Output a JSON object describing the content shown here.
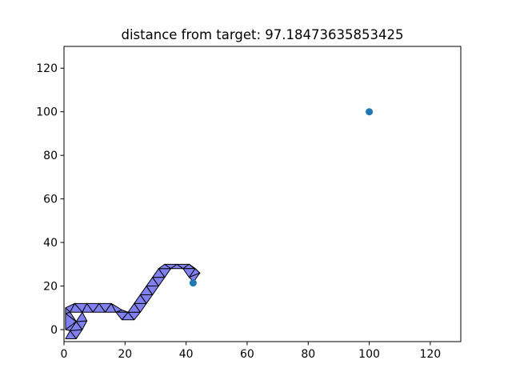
{
  "chart_data": {
    "type": "scatter",
    "title": "distance from target: 97.18473635853425",
    "xlabel": "",
    "ylabel": "",
    "xlim": [
      0,
      130
    ],
    "ylim": [
      -5.5,
      130
    ],
    "xticks": [
      0,
      20,
      40,
      60,
      80,
      100,
      120
    ],
    "yticks": [
      0,
      20,
      40,
      60,
      80,
      100,
      120
    ],
    "grid": false,
    "points": [
      {
        "x": 100,
        "y": 100
      },
      {
        "x": 42.3,
        "y": 21.4
      }
    ],
    "colors": {
      "marker": "#1f77b4",
      "triangle_fill": "#8080f0",
      "triangle_edge": "#000000"
    },
    "triangles": [
      [
        [
          0.5,
          -4.2
        ],
        [
          4.0,
          -4.2
        ],
        [
          2.0,
          -0.5
        ]
      ],
      [
        [
          2.0,
          -0.5
        ],
        [
          4.0,
          -4.2
        ],
        [
          6.0,
          0.0
        ]
      ],
      [
        [
          0.5,
          0.0
        ],
        [
          2.0,
          -0.5
        ],
        [
          4.0,
          3.7
        ]
      ],
      [
        [
          2.0,
          -0.5
        ],
        [
          6.0,
          0.0
        ],
        [
          4.0,
          3.7
        ]
      ],
      [
        [
          4.0,
          3.7
        ],
        [
          6.0,
          0.0
        ],
        [
          7.5,
          4.0
        ]
      ],
      [
        [
          0.5,
          0.0
        ],
        [
          4.0,
          3.7
        ],
        [
          0.5,
          7.4
        ]
      ],
      [
        [
          0.5,
          7.4
        ],
        [
          4.0,
          3.7
        ],
        [
          2.0,
          8.0
        ]
      ],
      [
        [
          4.0,
          3.7
        ],
        [
          7.5,
          4.0
        ],
        [
          6.0,
          8.0
        ]
      ],
      [
        [
          0.5,
          7.4
        ],
        [
          2.0,
          8.0
        ],
        [
          0.5,
          10.0
        ]
      ],
      [
        [
          0.5,
          10.0
        ],
        [
          2.0,
          8.0
        ],
        [
          3.5,
          12.0
        ]
      ],
      [
        [
          2.0,
          8.0
        ],
        [
          6.0,
          8.0
        ],
        [
          3.5,
          12.0
        ]
      ],
      [
        [
          3.5,
          12.0
        ],
        [
          6.0,
          8.0
        ],
        [
          7.5,
          12.0
        ]
      ],
      [
        [
          6.0,
          8.0
        ],
        [
          9.5,
          8.0
        ],
        [
          7.5,
          12.0
        ]
      ],
      [
        [
          7.5,
          12.0
        ],
        [
          9.5,
          8.0
        ],
        [
          11.5,
          12.0
        ]
      ],
      [
        [
          9.5,
          8.0
        ],
        [
          13.5,
          8.0
        ],
        [
          11.5,
          12.0
        ]
      ],
      [
        [
          11.5,
          12.0
        ],
        [
          13.5,
          8.0
        ],
        [
          15.5,
          12.0
        ]
      ],
      [
        [
          13.5,
          8.0
        ],
        [
          17.0,
          8.0
        ],
        [
          15.5,
          12.0
        ]
      ],
      [
        [
          15.5,
          12.0
        ],
        [
          17.0,
          8.0
        ],
        [
          19.0,
          9.0
        ]
      ],
      [
        [
          17.0,
          8.0
        ],
        [
          21.0,
          8.0
        ],
        [
          19.0,
          9.0
        ]
      ],
      [
        [
          17.0,
          8.0
        ],
        [
          19.0,
          4.5
        ],
        [
          21.0,
          8.0
        ]
      ],
      [
        [
          19.0,
          4.5
        ],
        [
          23.0,
          4.5
        ],
        [
          21.0,
          8.0
        ]
      ],
      [
        [
          21.0,
          8.0
        ],
        [
          23.0,
          4.5
        ],
        [
          25.0,
          8.0
        ]
      ],
      [
        [
          21.0,
          8.0
        ],
        [
          25.0,
          8.0
        ],
        [
          23.0,
          12.0
        ]
      ],
      [
        [
          23.0,
          12.0
        ],
        [
          25.0,
          8.0
        ],
        [
          27.0,
          12.0
        ]
      ],
      [
        [
          23.0,
          12.0
        ],
        [
          27.0,
          12.0
        ],
        [
          25.0,
          16.0
        ]
      ],
      [
        [
          25.0,
          16.0
        ],
        [
          27.0,
          12.0
        ],
        [
          29.0,
          16.0
        ]
      ],
      [
        [
          25.0,
          16.0
        ],
        [
          29.0,
          16.0
        ],
        [
          27.0,
          20.0
        ]
      ],
      [
        [
          27.0,
          20.0
        ],
        [
          29.0,
          16.0
        ],
        [
          31.0,
          20.0
        ]
      ],
      [
        [
          27.0,
          20.0
        ],
        [
          31.0,
          20.0
        ],
        [
          29.0,
          24.0
        ]
      ],
      [
        [
          29.0,
          24.0
        ],
        [
          31.0,
          20.0
        ],
        [
          33.0,
          24.0
        ]
      ],
      [
        [
          29.0,
          24.0
        ],
        [
          33.0,
          24.0
        ],
        [
          31.0,
          28.0
        ]
      ],
      [
        [
          31.0,
          28.0
        ],
        [
          33.0,
          24.0
        ],
        [
          35.0,
          28.0
        ]
      ],
      [
        [
          31.0,
          28.0
        ],
        [
          35.0,
          28.0
        ],
        [
          33.0,
          30.0
        ]
      ],
      [
        [
          33.0,
          30.0
        ],
        [
          35.0,
          28.0
        ],
        [
          37.0,
          30.0
        ]
      ],
      [
        [
          35.0,
          28.0
        ],
        [
          39.0,
          28.0
        ],
        [
          37.0,
          30.0
        ]
      ],
      [
        [
          37.0,
          30.0
        ],
        [
          39.0,
          28.0
        ],
        [
          41.0,
          30.0
        ]
      ],
      [
        [
          39.0,
          28.0
        ],
        [
          43.0,
          28.0
        ],
        [
          41.0,
          30.0
        ]
      ],
      [
        [
          41.0,
          30.0
        ],
        [
          43.0,
          28.0
        ],
        [
          44.5,
          26.0
        ]
      ],
      [
        [
          39.0,
          28.0
        ],
        [
          43.0,
          28.0
        ],
        [
          41.0,
          24.0
        ]
      ],
      [
        [
          41.0,
          24.0
        ],
        [
          43.0,
          28.0
        ],
        [
          44.5,
          26.0
        ]
      ],
      [
        [
          41.0,
          24.0
        ],
        [
          44.5,
          26.0
        ],
        [
          42.5,
          22.0
        ]
      ]
    ]
  }
}
